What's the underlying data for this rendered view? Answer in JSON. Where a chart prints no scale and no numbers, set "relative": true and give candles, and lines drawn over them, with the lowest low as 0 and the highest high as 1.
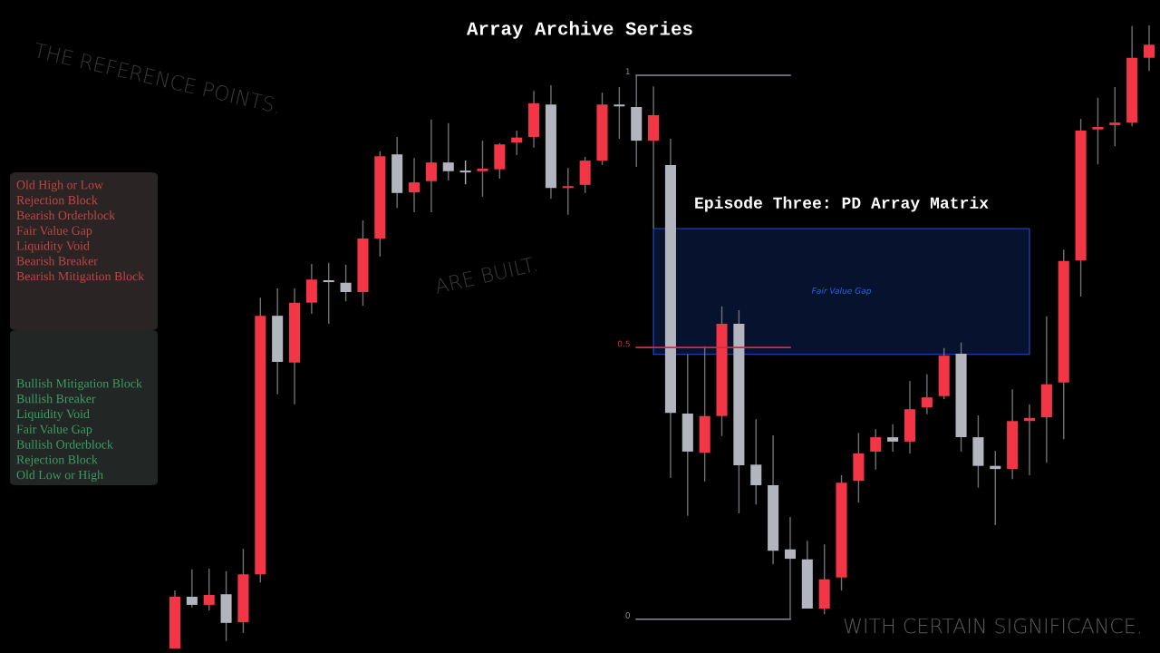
{
  "chart_data": {
    "type": "candlestick",
    "title": "Array Archive Series",
    "subtitle": "Episode Three: PD Array Matrix",
    "relative": true,
    "categories": [
      null,
      null,
      null,
      null,
      null,
      null,
      null,
      null,
      null,
      null,
      null,
      null,
      null,
      null,
      null,
      null,
      null,
      null,
      null,
      null,
      null,
      null,
      null,
      null,
      null,
      null,
      null,
      null,
      null,
      null,
      null,
      null,
      null,
      null,
      null,
      null,
      null,
      null,
      null,
      null,
      null,
      null,
      null,
      null,
      null,
      null,
      null,
      null,
      null,
      null,
      null,
      null,
      null,
      null,
      null,
      null,
      null,
      null
    ],
    "ohlc": [
      [
        0,
        0.093,
        0,
        0.083
      ],
      [
        0.083,
        0.127,
        0.066,
        0.07
      ],
      [
        0.07,
        0.128,
        0.061,
        0.086
      ],
      [
        0.087,
        0.124,
        0.012,
        0.041
      ],
      [
        0.042,
        0.16,
        0.025,
        0.119
      ],
      [
        0.119,
        0.563,
        0.106,
        0.534
      ],
      [
        0.534,
        0.578,
        0.408,
        0.46
      ],
      [
        0.459,
        0.578,
        0.392,
        0.555
      ],
      [
        0.555,
        0.617,
        0.537,
        0.592
      ],
      [
        0.591,
        0.619,
        0.521,
        0.588
      ],
      [
        0.587,
        0.616,
        0.557,
        0.572
      ],
      [
        0.572,
        0.687,
        0.55,
        0.658
      ],
      [
        0.658,
        0.798,
        0.629,
        0.79
      ],
      [
        0.793,
        0.821,
        0.707,
        0.731
      ],
      [
        0.732,
        0.787,
        0.7,
        0.748
      ],
      [
        0.75,
        0.849,
        0.7,
        0.78
      ],
      [
        0.78,
        0.843,
        0.751,
        0.766
      ],
      [
        0.764,
        0.783,
        0.745,
        0.764
      ],
      [
        0.766,
        0.815,
        0.725,
        0.77
      ],
      [
        0.769,
        0.811,
        0.754,
        0.809
      ],
      [
        0.812,
        0.831,
        0.792,
        0.82
      ],
      [
        0.821,
        0.895,
        0.804,
        0.875
      ],
      [
        0.873,
        0.904,
        0.722,
        0.739
      ],
      [
        0.739,
        0.771,
        0.696,
        0.741
      ],
      [
        0.744,
        0.789,
        0.731,
        0.783
      ],
      [
        0.783,
        0.892,
        0.776,
        0.873
      ],
      [
        0.873,
        0.901,
        0.818,
        0.87
      ],
      [
        0.869,
        0.92,
        0.773,
        0.815
      ],
      [
        0.815,
        0.902,
        0.674,
        0.856
      ],
      [
        0.776,
        0.818,
        0.274,
        0.378
      ],
      [
        0.377,
        0.472,
        0.213,
        0.316
      ],
      [
        0.314,
        0.485,
        0.268,
        0.373
      ],
      [
        0.373,
        0.549,
        0.341,
        0.521
      ],
      [
        0.521,
        0.543,
        0.217,
        0.294
      ],
      [
        0.295,
        0.368,
        0.231,
        0.262
      ],
      [
        0.262,
        0.342,
        0.135,
        0.157
      ],
      [
        0.159,
        0.211,
        0.047,
        0.144
      ],
      [
        0.143,
        0.173,
        0.064,
        0.064
      ],
      [
        0.064,
        0.167,
        0.055,
        0.111
      ],
      [
        0.114,
        0.278,
        0.093,
        0.266
      ],
      [
        0.269,
        0.346,
        0.234,
        0.313
      ],
      [
        0.316,
        0.352,
        0.287,
        0.339
      ],
      [
        0.339,
        0.36,
        0.316,
        0.332
      ],
      [
        0.332,
        0.429,
        0.313,
        0.384
      ],
      [
        0.387,
        0.44,
        0.376,
        0.403
      ],
      [
        0.405,
        0.482,
        0.4,
        0.47
      ],
      [
        0.473,
        0.491,
        0.316,
        0.339
      ],
      [
        0.339,
        0.374,
        0.258,
        0.293
      ],
      [
        0.293,
        0.317,
        0.198,
        0.288
      ],
      [
        0.288,
        0.416,
        0.272,
        0.365
      ],
      [
        0.365,
        0.392,
        0.278,
        0.37
      ],
      [
        0.371,
        0.533,
        0.298,
        0.424
      ],
      [
        0.427,
        0.64,
        0.336,
        0.622
      ],
      [
        0.623,
        0.85,
        0.565,
        0.831
      ],
      [
        0.833,
        0.884,
        0.777,
        0.837
      ],
      [
        0.84,
        0.901,
        0.806,
        0.844
      ],
      [
        0.844,
        0.999,
        0.838,
        0.948
      ],
      [
        0.948,
        1,
        0.927,
        0.969
      ]
    ],
    "colors": [
      "#f23645",
      "#b2b5be",
      "#f23645",
      "#b2b5be",
      "#f23645",
      "#f23645",
      "#b2b5be",
      "#f23645",
      "#f23645",
      "#b2b5be",
      "#b2b5be",
      "#f23645",
      "#f23645",
      "#b2b5be",
      "#f23645",
      "#f23645",
      "#b2b5be",
      "#b2b5be",
      "#f23645",
      "#f23645",
      "#f23645",
      "#f23645",
      "#b2b5be",
      "#f23645",
      "#f23645",
      "#f23645",
      "#b2b5be",
      "#b2b5be",
      "#f23645",
      "#b2b5be",
      "#b2b5be",
      "#f23645",
      "#f23645",
      "#b2b5be",
      "#b2b5be",
      "#b2b5be",
      "#b2b5be",
      "#b2b5be",
      "#f23645",
      "#f23645",
      "#f23645",
      "#f23645",
      "#b2b5be",
      "#f23645",
      "#f23645",
      "#f23645",
      "#b2b5be",
      "#b2b5be",
      "#b2b5be",
      "#f23645",
      "#f23645",
      "#f23645",
      "#f23645",
      "#f23645",
      "#f23645",
      "#f23645",
      "#f23645",
      "#f23645"
    ],
    "series": [
      {
        "type": "line",
        "name": "1",
        "color": "#8a8d96",
        "values": [
          null,
          null,
          null,
          null,
          null,
          null,
          null,
          null,
          null,
          null,
          null,
          null,
          null,
          null,
          null,
          null,
          null,
          null,
          null,
          null,
          null,
          null,
          null,
          null,
          null,
          null,
          null,
          0.92,
          0.92,
          0.92,
          0.92,
          0.92,
          0.92,
          0.92,
          0.92,
          0.92,
          0.92,
          null,
          null,
          null,
          null,
          null,
          null,
          null,
          null,
          null,
          null,
          null,
          null,
          null,
          null,
          null,
          null,
          null,
          null,
          null,
          null,
          null
        ]
      },
      {
        "type": "line",
        "name": "0.5",
        "color": "#c2334a",
        "values": [
          null,
          null,
          null,
          null,
          null,
          null,
          null,
          null,
          null,
          null,
          null,
          null,
          null,
          null,
          null,
          null,
          null,
          null,
          null,
          null,
          null,
          null,
          null,
          null,
          null,
          null,
          null,
          0.483,
          0.483,
          0.483,
          0.483,
          0.483,
          0.483,
          0.483,
          0.483,
          0.483,
          0.483,
          null,
          null,
          null,
          null,
          null,
          null,
          null,
          null,
          null,
          null,
          null,
          null,
          null,
          null,
          null,
          null,
          null,
          null,
          null,
          null,
          null
        ]
      },
      {
        "type": "line",
        "name": "0",
        "color": "#8a8d96",
        "values": [
          null,
          null,
          null,
          null,
          null,
          null,
          null,
          null,
          null,
          null,
          null,
          null,
          null,
          null,
          null,
          null,
          null,
          null,
          null,
          null,
          null,
          null,
          null,
          null,
          null,
          null,
          null,
          0.047,
          0.047,
          0.047,
          0.047,
          0.047,
          0.047,
          0.047,
          0.047,
          0.047,
          0.047,
          null,
          null,
          null,
          null,
          null,
          null,
          null,
          null,
          null,
          null,
          null,
          null,
          null,
          null,
          null,
          null,
          null,
          null,
          null,
          null,
          null
        ]
      },
      {
        "type": "area",
        "name": "Fair Value Gap",
        "color": "#2962ff",
        "values": [
          null,
          null,
          null,
          null,
          null,
          null,
          null,
          null,
          null,
          null,
          null,
          null,
          null,
          null,
          null,
          null,
          null,
          null,
          null,
          null,
          null,
          null,
          null,
          null,
          null,
          null,
          null,
          null,
          null,
          null,
          null,
          null,
          null,
          null,
          null,
          null,
          null,
          null,
          null,
          null,
          null,
          null,
          null,
          null,
          null,
          null,
          null,
          null,
          null,
          null,
          null,
          null,
          null,
          null,
          null,
          null,
          null,
          null
        ],
        "lower": [
          null,
          null,
          null,
          null,
          null,
          null,
          null,
          null,
          null,
          null,
          null,
          null,
          null,
          null,
          null,
          null,
          null,
          null,
          null,
          null,
          null,
          null,
          null,
          null,
          null,
          null,
          null,
          null,
          0.472,
          0.472,
          0.472,
          0.472,
          0.472,
          0.472,
          0.472,
          0.472,
          0.472,
          0.472,
          0.472,
          0.472,
          0.472,
          0.472,
          0.472,
          0.472,
          0.472,
          0.472,
          0.472,
          0.472,
          0.472,
          0.472,
          0.472,
          null,
          null,
          null,
          null,
          null,
          null,
          null
        ],
        "upper": [
          null,
          null,
          null,
          null,
          null,
          null,
          null,
          null,
          null,
          null,
          null,
          null,
          null,
          null,
          null,
          null,
          null,
          null,
          null,
          null,
          null,
          null,
          null,
          null,
          null,
          null,
          null,
          null,
          0.674,
          0.674,
          0.674,
          0.674,
          0.674,
          0.674,
          0.674,
          0.674,
          0.674,
          0.674,
          0.674,
          0.674,
          0.674,
          0.674,
          0.674,
          0.674,
          0.674,
          0.674,
          0.674,
          0.674,
          0.674,
          0.674,
          0.674,
          null,
          null,
          null,
          null,
          null,
          null,
          null
        ]
      }
    ],
    "annotations": [
      "THE REFERENCE POINTS.",
      "ARE BUILT.",
      "WITH CERTAIN SIGNIFICANCE.",
      "Old High or Low",
      "Rejection Block",
      "Bearish Orderblock",
      "Fair Value Gap",
      "Liquidity Void",
      "Bearish Breaker",
      "Bearish Mitigation Block",
      "Bullish Mitigation Block",
      "Bullish Breaker",
      "Liquidity Void",
      "Fair Value Gap",
      "Bullish Orderblock",
      "Rejection Block",
      "Old Low or High"
    ]
  }
}
